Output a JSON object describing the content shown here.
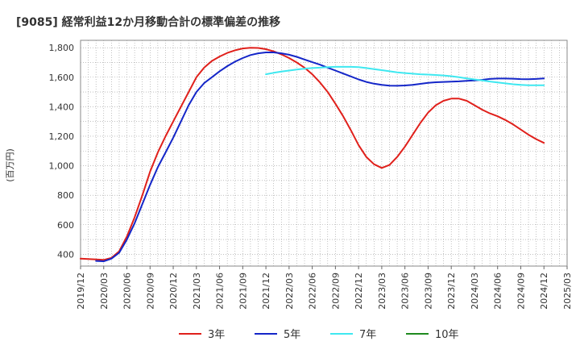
{
  "chart_data": {
    "type": "line",
    "title": "[9085]  経常利益12か月移動合計の標準偏差の推移",
    "ylabel": "(百万円)",
    "xlabel": "",
    "ylim": [
      320,
      1850
    ],
    "y_ticks": [
      400,
      600,
      800,
      1000,
      1200,
      1400,
      1600,
      1800
    ],
    "y_tick_labels": [
      "400",
      "600",
      "800",
      "1,000",
      "1,200",
      "1,400",
      "1,600",
      "1,800"
    ],
    "x_ticks": [
      "2019/12",
      "2020/03",
      "2020/06",
      "2020/09",
      "2020/12",
      "2021/03",
      "2021/06",
      "2021/09",
      "2021/12",
      "2022/03",
      "2022/06",
      "2022/09",
      "2022/12",
      "2023/03",
      "2023/06",
      "2023/09",
      "2023/12",
      "2024/03",
      "2024/06",
      "2024/09",
      "2024/12",
      "2025/03"
    ],
    "grid": true,
    "legend_position": "bottom",
    "series": [
      {
        "name": "3年",
        "color": "#e0201b",
        "points": [
          [
            "2019/12",
            370
          ],
          [
            "2020/01",
            368
          ],
          [
            "2020/02",
            365
          ],
          [
            "2020/03",
            362
          ],
          [
            "2020/04",
            375
          ],
          [
            "2020/05",
            420
          ],
          [
            "2020/06",
            520
          ],
          [
            "2020/07",
            650
          ],
          [
            "2020/08",
            800
          ],
          [
            "2020/09",
            960
          ],
          [
            "2020/10",
            1090
          ],
          [
            "2020/11",
            1200
          ],
          [
            "2020/12",
            1300
          ],
          [
            "2021/01",
            1400
          ],
          [
            "2021/02",
            1500
          ],
          [
            "2021/03",
            1600
          ],
          [
            "2021/04",
            1665
          ],
          [
            "2021/05",
            1710
          ],
          [
            "2021/06",
            1740
          ],
          [
            "2021/07",
            1765
          ],
          [
            "2021/08",
            1782
          ],
          [
            "2021/09",
            1795
          ],
          [
            "2021/10",
            1800
          ],
          [
            "2021/11",
            1798
          ],
          [
            "2021/12",
            1790
          ],
          [
            "2022/01",
            1775
          ],
          [
            "2022/02",
            1755
          ],
          [
            "2022/03",
            1730
          ],
          [
            "2022/04",
            1700
          ],
          [
            "2022/05",
            1665
          ],
          [
            "2022/06",
            1620
          ],
          [
            "2022/07",
            1565
          ],
          [
            "2022/08",
            1500
          ],
          [
            "2022/09",
            1420
          ],
          [
            "2022/10",
            1335
          ],
          [
            "2022/11",
            1240
          ],
          [
            "2022/12",
            1140
          ],
          [
            "2023/01",
            1060
          ],
          [
            "2023/02",
            1010
          ],
          [
            "2023/03",
            985
          ],
          [
            "2023/04",
            1005
          ],
          [
            "2023/05",
            1060
          ],
          [
            "2023/06",
            1130
          ],
          [
            "2023/07",
            1210
          ],
          [
            "2023/08",
            1290
          ],
          [
            "2023/09",
            1360
          ],
          [
            "2023/10",
            1410
          ],
          [
            "2023/11",
            1440
          ],
          [
            "2023/12",
            1455
          ],
          [
            "2024/01",
            1455
          ],
          [
            "2024/02",
            1440
          ],
          [
            "2024/03",
            1410
          ],
          [
            "2024/04",
            1380
          ],
          [
            "2024/05",
            1355
          ],
          [
            "2024/06",
            1335
          ],
          [
            "2024/07",
            1310
          ],
          [
            "2024/08",
            1280
          ],
          [
            "2024/09",
            1245
          ],
          [
            "2024/10",
            1210
          ],
          [
            "2024/11",
            1180
          ],
          [
            "2024/12",
            1155
          ]
        ]
      },
      {
        "name": "5年",
        "color": "#1426c8",
        "points": [
          [
            "2020/02",
            355
          ],
          [
            "2020/03",
            352
          ],
          [
            "2020/04",
            370
          ],
          [
            "2020/05",
            410
          ],
          [
            "2020/06",
            500
          ],
          [
            "2020/07",
            610
          ],
          [
            "2020/08",
            740
          ],
          [
            "2020/09",
            870
          ],
          [
            "2020/10",
            990
          ],
          [
            "2020/11",
            1090
          ],
          [
            "2020/12",
            1190
          ],
          [
            "2021/01",
            1300
          ],
          [
            "2021/02",
            1410
          ],
          [
            "2021/03",
            1500
          ],
          [
            "2021/04",
            1560
          ],
          [
            "2021/05",
            1600
          ],
          [
            "2021/06",
            1640
          ],
          [
            "2021/07",
            1675
          ],
          [
            "2021/08",
            1705
          ],
          [
            "2021/09",
            1730
          ],
          [
            "2021/10",
            1750
          ],
          [
            "2021/11",
            1762
          ],
          [
            "2021/12",
            1768
          ],
          [
            "2022/01",
            1768
          ],
          [
            "2022/02",
            1762
          ],
          [
            "2022/03",
            1752
          ],
          [
            "2022/04",
            1738
          ],
          [
            "2022/05",
            1720
          ],
          [
            "2022/06",
            1702
          ],
          [
            "2022/07",
            1685
          ],
          [
            "2022/08",
            1665
          ],
          [
            "2022/09",
            1645
          ],
          [
            "2022/10",
            1625
          ],
          [
            "2022/11",
            1605
          ],
          [
            "2022/12",
            1585
          ],
          [
            "2023/01",
            1568
          ],
          [
            "2023/02",
            1556
          ],
          [
            "2023/03",
            1548
          ],
          [
            "2023/04",
            1543
          ],
          [
            "2023/05",
            1542
          ],
          [
            "2023/06",
            1544
          ],
          [
            "2023/07",
            1548
          ],
          [
            "2023/08",
            1555
          ],
          [
            "2023/09",
            1562
          ],
          [
            "2023/10",
            1566
          ],
          [
            "2023/11",
            1568
          ],
          [
            "2023/12",
            1570
          ],
          [
            "2024/01",
            1572
          ],
          [
            "2024/02",
            1575
          ],
          [
            "2024/03",
            1578
          ],
          [
            "2024/04",
            1582
          ],
          [
            "2024/05",
            1588
          ],
          [
            "2024/06",
            1591
          ],
          [
            "2024/07",
            1591
          ],
          [
            "2024/08",
            1590
          ],
          [
            "2024/09",
            1587
          ],
          [
            "2024/10",
            1586
          ],
          [
            "2024/11",
            1588
          ],
          [
            "2024/12",
            1592
          ]
        ]
      },
      {
        "name": "7年",
        "color": "#3fe8f0",
        "points": [
          [
            "2021/12",
            1620
          ],
          [
            "2022/01",
            1630
          ],
          [
            "2022/02",
            1638
          ],
          [
            "2022/03",
            1645
          ],
          [
            "2022/04",
            1652
          ],
          [
            "2022/05",
            1658
          ],
          [
            "2022/06",
            1662
          ],
          [
            "2022/07",
            1665
          ],
          [
            "2022/08",
            1668
          ],
          [
            "2022/09",
            1670
          ],
          [
            "2022/10",
            1670
          ],
          [
            "2022/11",
            1670
          ],
          [
            "2022/12",
            1668
          ],
          [
            "2023/01",
            1662
          ],
          [
            "2023/02",
            1655
          ],
          [
            "2023/03",
            1648
          ],
          [
            "2023/04",
            1640
          ],
          [
            "2023/05",
            1633
          ],
          [
            "2023/06",
            1628
          ],
          [
            "2023/07",
            1624
          ],
          [
            "2023/08",
            1620
          ],
          [
            "2023/09",
            1618
          ],
          [
            "2023/10",
            1615
          ],
          [
            "2023/11",
            1612
          ],
          [
            "2023/12",
            1607
          ],
          [
            "2024/01",
            1600
          ],
          [
            "2024/02",
            1592
          ],
          [
            "2024/03",
            1585
          ],
          [
            "2024/04",
            1578
          ],
          [
            "2024/05",
            1571
          ],
          [
            "2024/06",
            1565
          ],
          [
            "2024/07",
            1558
          ],
          [
            "2024/08",
            1552
          ],
          [
            "2024/09",
            1548
          ],
          [
            "2024/10",
            1545
          ],
          [
            "2024/11",
            1545
          ],
          [
            "2024/12",
            1545
          ]
        ]
      },
      {
        "name": "10年",
        "color": "#1f8a1f",
        "points": []
      }
    ]
  }
}
